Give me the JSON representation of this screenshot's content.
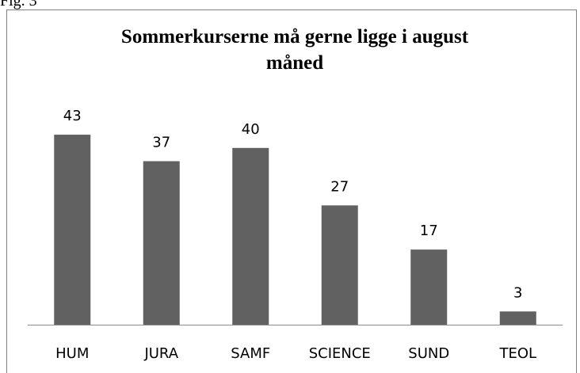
{
  "caption": "Fig. 3",
  "chart_data": {
    "type": "bar",
    "title": [
      "Sommerkurserne må gerne ligge i august",
      "måned"
    ],
    "categories": [
      "HUM",
      "JURA",
      "SAMF",
      "SCIENCE",
      "SUND",
      "TEOL"
    ],
    "values": [
      43,
      37,
      40,
      27,
      17,
      3
    ],
    "color": "#616161",
    "ylim": [
      0,
      50
    ]
  }
}
